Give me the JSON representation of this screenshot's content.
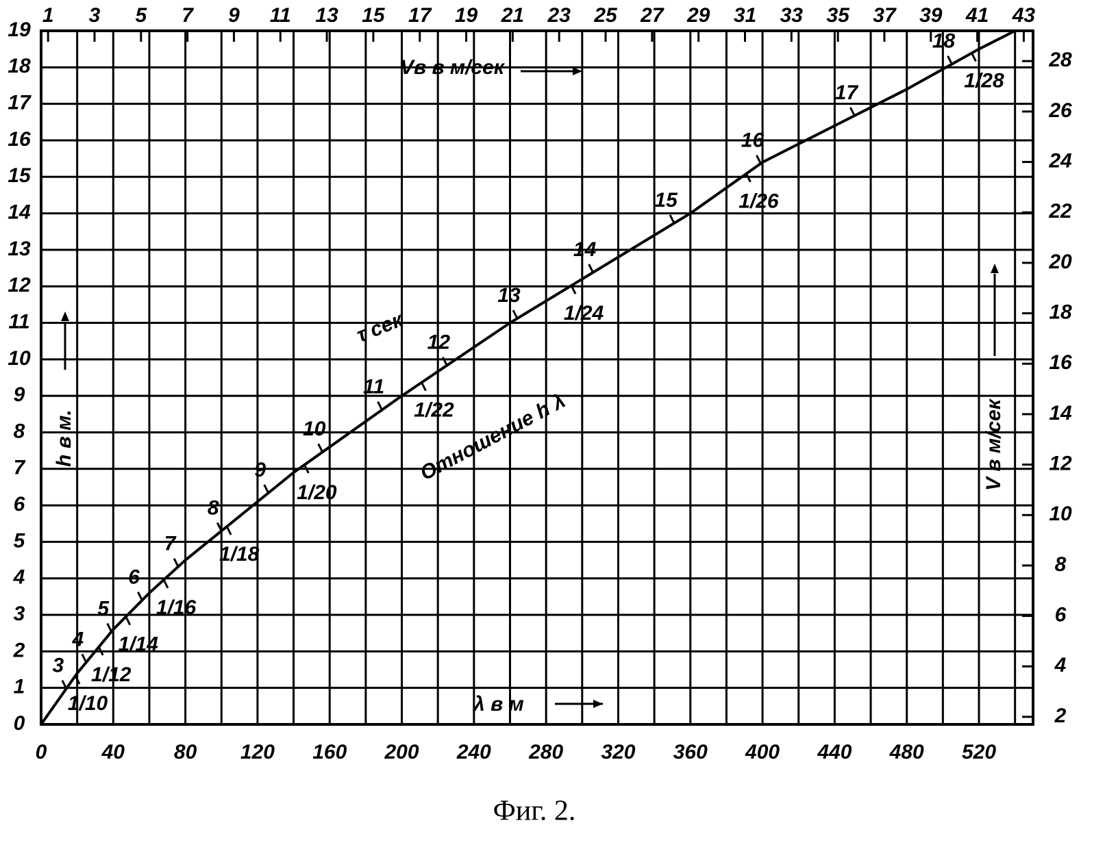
{
  "chart_data": {
    "type": "line",
    "caption": "Фиг. 2.",
    "x_label": "λ в м",
    "y_label": "h в м.",
    "x2_label": "Vв в м/сек",
    "y2_label": "V в м/сек",
    "xlim": [
      0,
      550
    ],
    "xticks": [
      0,
      40,
      80,
      120,
      160,
      200,
      240,
      280,
      320,
      360,
      400,
      440,
      480,
      520
    ],
    "xgrid": [
      0,
      20,
      40,
      60,
      80,
      100,
      120,
      140,
      160,
      180,
      200,
      220,
      240,
      260,
      280,
      300,
      320,
      340,
      360,
      380,
      400,
      420,
      440,
      460,
      480,
      500,
      520,
      540
    ],
    "ylim": [
      0,
      19
    ],
    "yticks": [
      0,
      1,
      2,
      3,
      4,
      5,
      6,
      7,
      8,
      9,
      10,
      11,
      12,
      13,
      14,
      15,
      16,
      17,
      18,
      19
    ],
    "x2lim": [
      0.7,
      43.4
    ],
    "x2ticks": [
      1,
      3,
      5,
      7,
      9,
      11,
      13,
      15,
      17,
      19,
      21,
      23,
      25,
      27,
      29,
      31,
      33,
      35,
      37,
      39,
      41,
      43
    ],
    "y2lim": [
      1.7,
      29.2
    ],
    "y2ticks": [
      2,
      4,
      6,
      8,
      10,
      12,
      14,
      16,
      18,
      20,
      22,
      24,
      26,
      28
    ],
    "grid": true,
    "series": [
      {
        "color": "#000000",
        "x": [
          0,
          20,
          40,
          60,
          80,
          100,
          140,
          200,
          260,
          300,
          360,
          400,
          440,
          480,
          520,
          540
        ],
        "values": [
          0,
          1.4,
          2.6,
          3.6,
          4.5,
          5.3,
          6.9,
          9.0,
          11.0,
          12.2,
          14.0,
          15.4,
          16.4,
          17.4,
          18.5,
          19.0
        ]
      }
    ],
    "period": {
      "title": "τ сек",
      "values": [
        3,
        4,
        5,
        6,
        7,
        8,
        9,
        10,
        11,
        12,
        13,
        14,
        15,
        16,
        17,
        18
      ],
      "x": [
        14,
        25,
        39,
        56,
        76,
        100,
        126,
        156,
        189,
        225,
        264,
        306,
        351,
        399,
        451,
        505
      ]
    },
    "ratio": {
      "title": "Отношение h λ",
      "labels": [
        "1/10",
        "1/12",
        "1/14",
        "1/16",
        "1/18",
        "1/20",
        "1/22",
        "1/24",
        "1/26",
        "1/28"
      ],
      "x": [
        19,
        32,
        47,
        68,
        103,
        146,
        211,
        294,
        391,
        516
      ]
    }
  }
}
